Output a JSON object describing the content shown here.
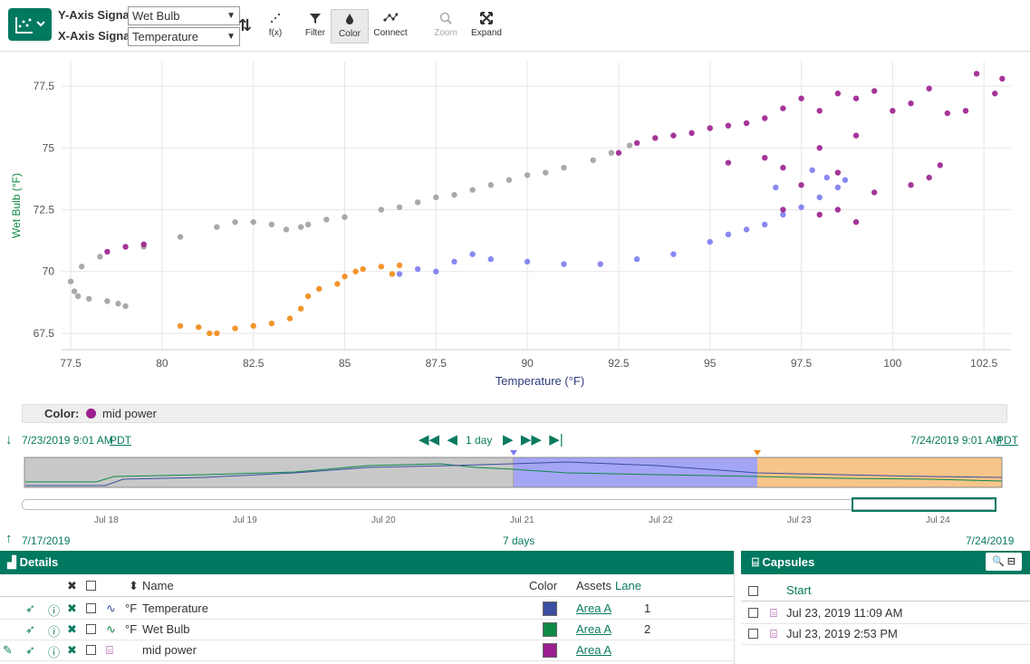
{
  "toolbar": {
    "y_axis_label": "Y-Axis Signal:",
    "y_signal": "Wet Bulb",
    "x_axis_label": "X-Axis Signal:",
    "x_signal": "Temperature",
    "buttons": [
      "f(x)",
      "Filter",
      "Color",
      "Connect",
      "Zoom",
      "Expand"
    ]
  },
  "chart_data": {
    "type": "scatter",
    "xlabel": "Temperature (°F)",
    "ylabel": "Wet Bulb (°F)",
    "xlim": [
      77.25,
      103.24
    ],
    "ylim": [
      66.84,
      78.49
    ],
    "xticks": [
      77.5,
      80,
      82.5,
      85,
      87.5,
      90,
      92.5,
      95,
      97.5,
      100,
      102.5
    ],
    "yticks": [
      67.5,
      70,
      72.5,
      75,
      77.5
    ],
    "grid": true,
    "series": [
      {
        "color": "#a0a0a0",
        "x": [
          77.5,
          77.6,
          77.7,
          78.0,
          78.5,
          78.8,
          79.0,
          77.8,
          78.3,
          79.5,
          80.5,
          81.5,
          82,
          82.5,
          83,
          83.4,
          83.8,
          84.0,
          84.5,
          85,
          86,
          86.5,
          87,
          87.5,
          88,
          88.5,
          89,
          89.5,
          90,
          90.5,
          91,
          91.8,
          92.3,
          92.8
        ],
        "y": [
          69.6,
          69.2,
          69.0,
          68.9,
          68.8,
          68.7,
          68.6,
          70.2,
          70.6,
          71.0,
          71.4,
          71.8,
          72.0,
          72.0,
          71.9,
          71.7,
          71.8,
          71.9,
          72.1,
          72.2,
          72.5,
          72.6,
          72.8,
          73.0,
          73.1,
          73.3,
          73.5,
          73.7,
          73.9,
          74.0,
          74.2,
          74.5,
          74.8,
          75.1
        ]
      },
      {
        "color": "#f28a16",
        "x": [
          80.5,
          81.0,
          81.3,
          81.5,
          82.0,
          82.5,
          83.0,
          83.5,
          83.8,
          84.0,
          84.3,
          84.8,
          85.0,
          85.3,
          85.5,
          86.0,
          86.5,
          86.3
        ],
        "y": [
          67.8,
          67.75,
          67.5,
          67.5,
          67.7,
          67.8,
          67.9,
          68.1,
          68.5,
          69.0,
          69.3,
          69.5,
          69.8,
          70.0,
          70.1,
          70.2,
          70.25,
          69.9
        ]
      },
      {
        "color": "#7b7bf0",
        "x": [
          86.5,
          87.0,
          87.5,
          88.0,
          88.5,
          89.0,
          90.0,
          91.0,
          92.0,
          93.0,
          94.0,
          95.0,
          95.5,
          96.0,
          96.5,
          97.0,
          97.5,
          98.0,
          98.5,
          98.2,
          97.8,
          96.8,
          98.7
        ],
        "y": [
          69.9,
          70.1,
          70.0,
          70.4,
          70.7,
          70.5,
          70.4,
          70.3,
          70.3,
          70.5,
          70.7,
          71.2,
          71.5,
          71.7,
          71.9,
          72.3,
          72.6,
          73.0,
          73.4,
          73.8,
          74.1,
          73.4,
          73.7
        ]
      },
      {
        "color": "#9b1f8e",
        "x": [
          78.5,
          79.0,
          79.5,
          92.5,
          93.0,
          93.5,
          94.0,
          94.5,
          95.0,
          95.5,
          96.0,
          96.5,
          97.0,
          97.5,
          98.0,
          98.5,
          99.0,
          99.5,
          100.0,
          100.5,
          101.0,
          101.5,
          102.0,
          102.3,
          102.8,
          103.0,
          97.0,
          97.5,
          98.0,
          98.5,
          99.0,
          99.5,
          100.5,
          101.0,
          101.3,
          98.0,
          97.0,
          98.5,
          99.0,
          96.5,
          95.5
        ],
        "y": [
          70.8,
          71.0,
          71.1,
          74.8,
          75.2,
          75.4,
          75.5,
          75.6,
          75.8,
          75.9,
          76.0,
          76.2,
          76.6,
          77.0,
          76.5,
          77.2,
          77.0,
          77.3,
          76.5,
          76.8,
          77.4,
          76.4,
          76.5,
          78.0,
          77.2,
          77.8,
          74.2,
          73.5,
          75.0,
          74.0,
          72.0,
          73.2,
          73.5,
          73.8,
          74.3,
          72.3,
          72.5,
          72.5,
          75.5,
          74.6,
          74.4
        ]
      }
    ]
  },
  "color_legend": {
    "label": "Color:",
    "name": "mid power",
    "color": "#9b1f8e"
  },
  "timeline": {
    "start": "7/23/2019 9:01 AM",
    "start_tz": "PDT",
    "duration": "1 day",
    "end": "7/24/2019 9:01 AM",
    "end_tz": "PDT",
    "days": [
      "Jul 18",
      "Jul 19",
      "Jul 20",
      "Jul 21",
      "Jul 22",
      "Jul 23",
      "Jul 24"
    ],
    "range_start": "7/17/2019",
    "range_length": "7 days",
    "range_end": "7/24/2019"
  },
  "details": {
    "title": "Details",
    "columns": [
      "Name",
      "Color",
      "Assets",
      "Lane"
    ],
    "rows": [
      {
        "unit": "°F",
        "name": "Temperature",
        "color": "#3b4ea0",
        "asset": "Area A",
        "lane": 1
      },
      {
        "unit": "°F",
        "name": "Wet Bulb",
        "color": "#0f8a46",
        "asset": "Area A",
        "lane": 2
      },
      {
        "name": "mid power",
        "color": "#9b1f8e",
        "asset": "Area A"
      }
    ]
  },
  "capsules": {
    "title": "Capsules",
    "column": "Start",
    "rows": [
      "Jul 23, 2019 11:09 AM",
      "Jul 23, 2019 2:53 PM"
    ]
  }
}
